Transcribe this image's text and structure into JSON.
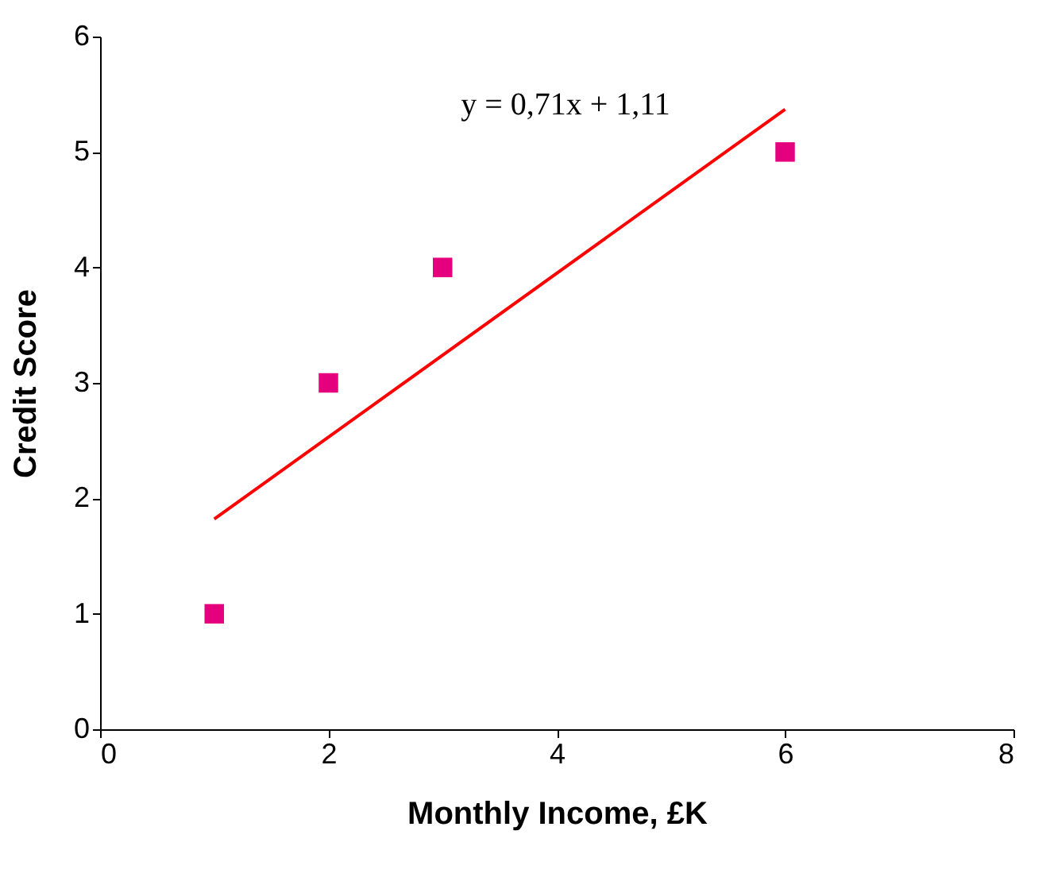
{
  "chart_data": {
    "type": "scatter",
    "xlabel": "Monthly Income, £K",
    "ylabel": "Credit Score",
    "xlim": [
      0,
      8
    ],
    "ylim": [
      0,
      6
    ],
    "xticks": [
      0,
      2,
      4,
      6,
      8
    ],
    "yticks": [
      0,
      1,
      2,
      3,
      4,
      5,
      6
    ],
    "grid": false,
    "marker": "square",
    "annotations": [
      "y = 0,71x + 1,11"
    ],
    "series": [
      {
        "color": "#e5007d",
        "x": [
          1,
          2,
          3,
          6
        ],
        "values": [
          1,
          3,
          4,
          5
        ]
      },
      {
        "type": "line",
        "color": "#ff0000",
        "x": [
          1,
          6
        ],
        "values": [
          1.82,
          5.37
        ],
        "marker": "none",
        "line_style": "solid"
      }
    ]
  }
}
